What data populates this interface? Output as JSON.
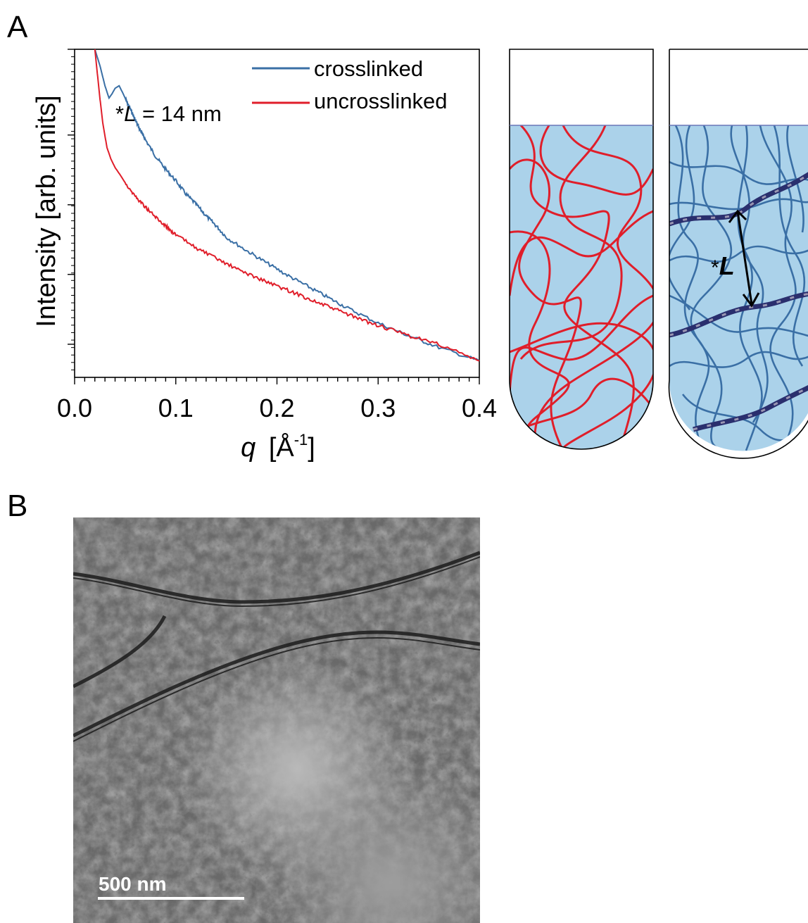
{
  "panels": {
    "a_label": "A",
    "b_label": "B"
  },
  "chart_data": {
    "type": "line",
    "title": "",
    "xlabel_var": "q",
    "xlabel_unit": "[Å",
    "xlabel_exp": "-1",
    "xlabel_close": "]",
    "ylabel": "Intensity [arb. units]",
    "xlim": [
      0.0,
      0.4
    ],
    "x_ticks": [
      "0.0",
      "0.1",
      "0.2",
      "0.3",
      "0.4"
    ],
    "y_scale": "log",
    "legend_position": "top-right",
    "annotation": {
      "star": "*",
      "var": "L",
      "text": " = 14 nm",
      "x": 0.045
    },
    "series": [
      {
        "name": "crosslinked",
        "color": "#3a6fa5",
        "x": [
          0.02,
          0.025,
          0.03,
          0.034,
          0.037,
          0.04,
          0.044,
          0.048,
          0.052,
          0.056,
          0.06,
          0.065,
          0.07,
          0.08,
          0.09,
          0.1,
          0.11,
          0.12,
          0.13,
          0.14,
          0.15,
          0.17,
          0.19,
          0.21,
          0.23,
          0.25,
          0.27,
          0.3,
          0.33,
          0.36,
          0.4
        ],
        "y": [
          1.0,
          0.82,
          0.64,
          0.55,
          0.58,
          0.62,
          0.64,
          0.58,
          0.52,
          0.47,
          0.42,
          0.37,
          0.33,
          0.27,
          0.23,
          0.2,
          0.17,
          0.15,
          0.13,
          0.115,
          0.1,
          0.085,
          0.073,
          0.063,
          0.055,
          0.048,
          0.042,
          0.035,
          0.03,
          0.026,
          0.022
        ]
      },
      {
        "name": "uncrosslinked",
        "color": "#e01e2a",
        "x": [
          0.02,
          0.025,
          0.028,
          0.032,
          0.036,
          0.04,
          0.045,
          0.05,
          0.06,
          0.07,
          0.08,
          0.09,
          0.1,
          0.12,
          0.14,
          0.16,
          0.18,
          0.2,
          0.22,
          0.24,
          0.26,
          0.28,
          0.3,
          0.33,
          0.36,
          0.4
        ],
        "y": [
          1.0,
          0.55,
          0.4,
          0.3,
          0.26,
          0.235,
          0.215,
          0.195,
          0.165,
          0.145,
          0.128,
          0.115,
          0.103,
          0.088,
          0.077,
          0.068,
          0.061,
          0.055,
          0.05,
          0.045,
          0.041,
          0.037,
          0.034,
          0.03,
          0.027,
          0.022
        ]
      }
    ]
  },
  "schematic": {
    "annotation_star": "*",
    "annotation_var": "L"
  },
  "tem": {
    "scalebar_label": "500 nm"
  }
}
